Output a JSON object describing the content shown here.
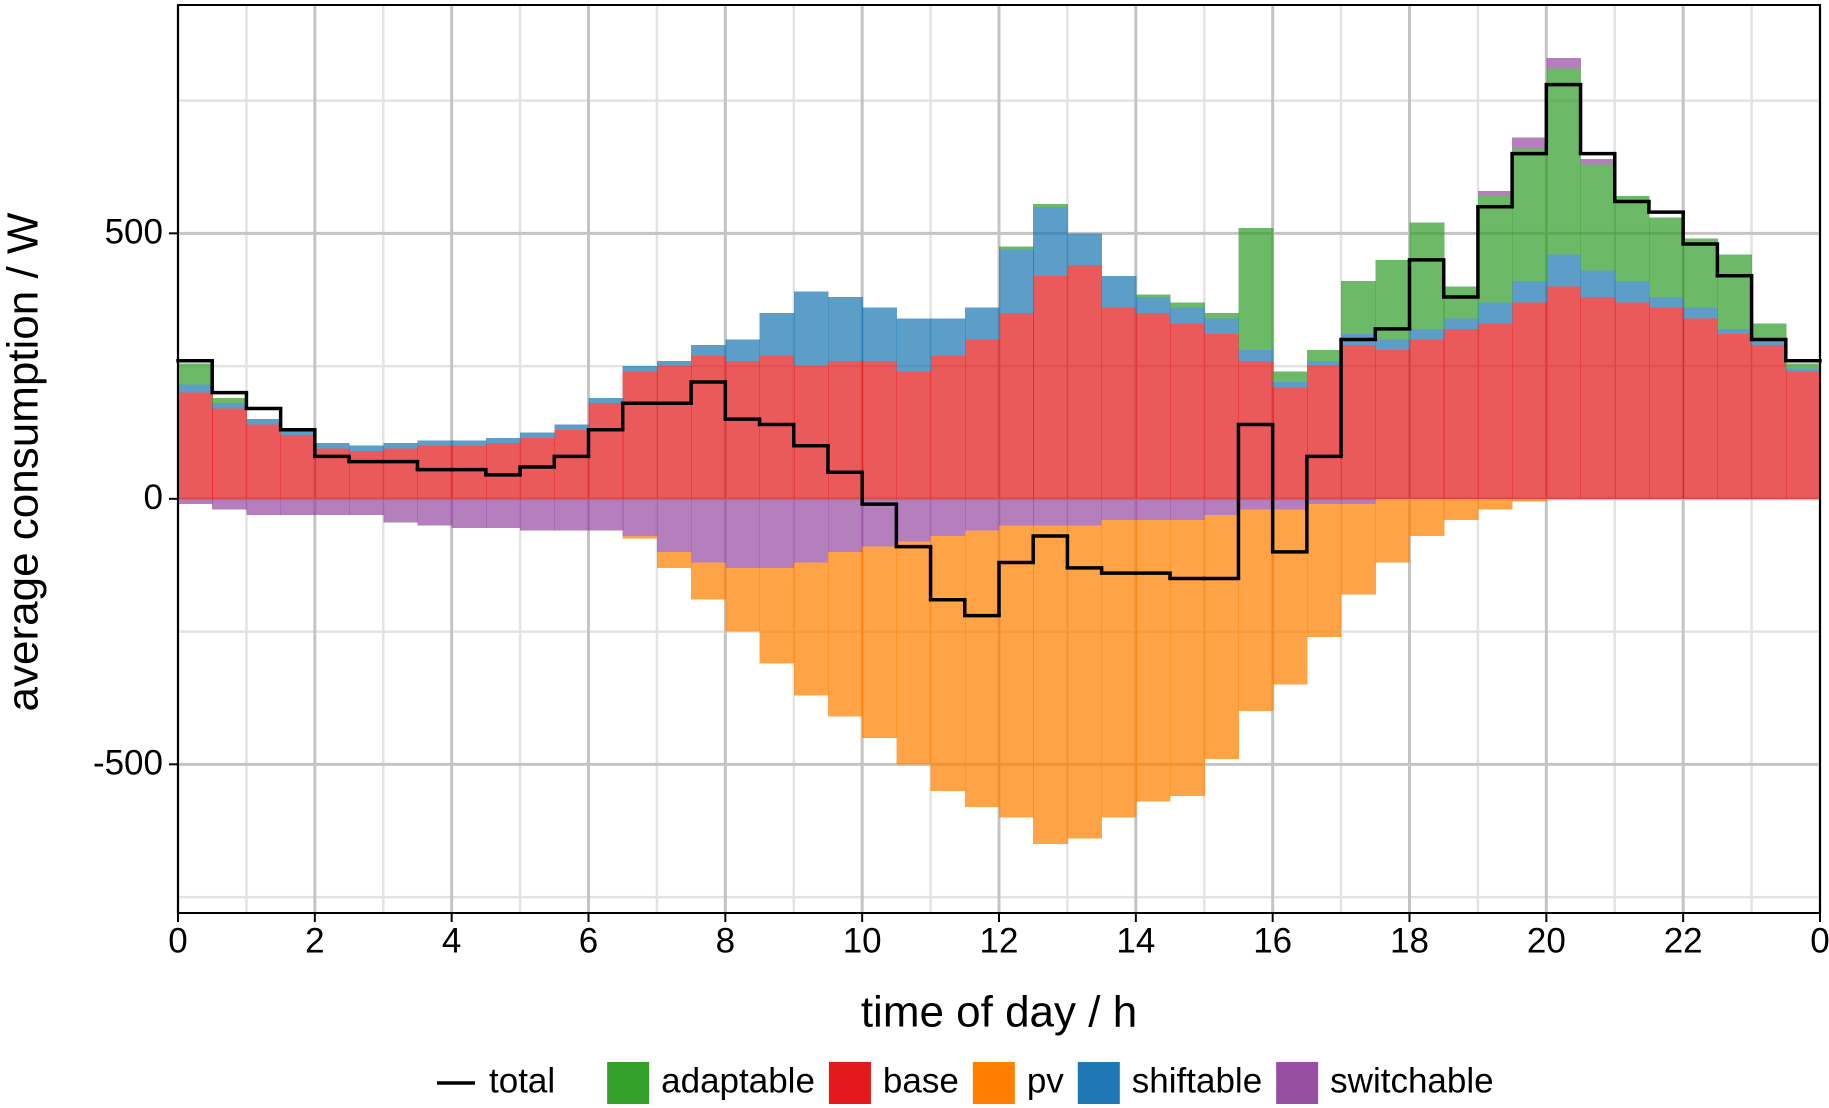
{
  "chart_data": {
    "type": "stacked-step-area",
    "x_label": "time of day / h",
    "y_label": "average consumption / W",
    "xlim": [
      0,
      24
    ],
    "xticks": [
      0,
      2,
      4,
      6,
      8,
      10,
      12,
      14,
      16,
      18,
      20,
      22,
      {
        "value": 24,
        "label": "0"
      }
    ],
    "ylim": [
      -780,
      930
    ],
    "yticks": [
      -500,
      0,
      500
    ],
    "grid": true,
    "legend": "bottom",
    "x": [
      0,
      0.5,
      1,
      1.5,
      2,
      2.5,
      3,
      3.5,
      4,
      4.5,
      5,
      5.5,
      6,
      6.5,
      7,
      7.5,
      8,
      8.5,
      9,
      9.5,
      10,
      10.5,
      11,
      11.5,
      12,
      12.5,
      13,
      13.5,
      14,
      14.5,
      15,
      15.5,
      16,
      16.5,
      17,
      17.5,
      18,
      18.5,
      19,
      19.5,
      20,
      20.5,
      21,
      21.5,
      22,
      22.5,
      23,
      23.5
    ],
    "total": {
      "name": "total",
      "color": "#000000",
      "values": [
        260,
        200,
        170,
        130,
        80,
        70,
        70,
        55,
        55,
        45,
        60,
        80,
        130,
        180,
        180,
        220,
        150,
        140,
        100,
        50,
        -10,
        -90,
        -190,
        -220,
        -120,
        -70,
        -130,
        -140,
        -140,
        -150,
        -150,
        140,
        -100,
        80,
        300,
        320,
        450,
        380,
        550,
        650,
        780,
        650,
        560,
        540,
        480,
        420,
        300,
        260
      ]
    },
    "series": [
      {
        "name": "adaptable",
        "color": "#33a02c",
        "values": [
          40,
          10,
          0,
          0,
          0,
          0,
          0,
          0,
          0,
          0,
          0,
          0,
          0,
          0,
          0,
          0,
          0,
          0,
          0,
          0,
          0,
          0,
          0,
          0,
          5,
          5,
          0,
          0,
          5,
          10,
          10,
          230,
          20,
          20,
          100,
          150,
          200,
          60,
          200,
          250,
          350,
          200,
          160,
          150,
          130,
          140,
          30,
          10
        ]
      },
      {
        "name": "base",
        "color": "#e31a1c",
        "values": [
          200,
          170,
          140,
          120,
          95,
          90,
          95,
          100,
          100,
          105,
          115,
          130,
          180,
          240,
          250,
          270,
          260,
          270,
          250,
          260,
          260,
          240,
          270,
          300,
          350,
          420,
          440,
          360,
          350,
          330,
          310,
          260,
          210,
          250,
          290,
          280,
          300,
          320,
          330,
          370,
          400,
          380,
          370,
          360,
          340,
          310,
          290,
          240
        ]
      },
      {
        "name": "pv",
        "color": "#ff7f00",
        "values": [
          0,
          0,
          0,
          0,
          0,
          0,
          0,
          0,
          0,
          0,
          0,
          0,
          0,
          -5,
          -30,
          -70,
          -120,
          -180,
          -250,
          -310,
          -360,
          -420,
          -480,
          -520,
          -550,
          -600,
          -590,
          -560,
          -530,
          -520,
          -460,
          -380,
          -330,
          -250,
          -170,
          -120,
          -70,
          -40,
          -20,
          -5,
          0,
          0,
          0,
          0,
          0,
          0,
          0,
          0
        ]
      },
      {
        "name": "shiftable",
        "color": "#1f78b4",
        "values": [
          15,
          10,
          10,
          10,
          10,
          10,
          10,
          10,
          10,
          10,
          10,
          10,
          10,
          10,
          10,
          20,
          40,
          80,
          140,
          120,
          100,
          100,
          70,
          60,
          120,
          130,
          60,
          60,
          30,
          30,
          30,
          20,
          10,
          10,
          20,
          20,
          20,
          20,
          40,
          40,
          60,
          50,
          40,
          20,
          20,
          10,
          10,
          5
        ]
      },
      {
        "name": "switchable",
        "color": "#984ea3",
        "values": [
          -10,
          -20,
          -30,
          -30,
          -30,
          -30,
          -45,
          -50,
          -55,
          -55,
          -60,
          -60,
          -60,
          -70,
          -100,
          -120,
          -130,
          -130,
          -120,
          -100,
          -90,
          -80,
          -70,
          -60,
          -50,
          -50,
          -50,
          -40,
          -40,
          -40,
          -30,
          -20,
          -20,
          -10,
          -10,
          0,
          0,
          0,
          10,
          20,
          20,
          10,
          0,
          0,
          0,
          0,
          0,
          0
        ]
      }
    ]
  }
}
